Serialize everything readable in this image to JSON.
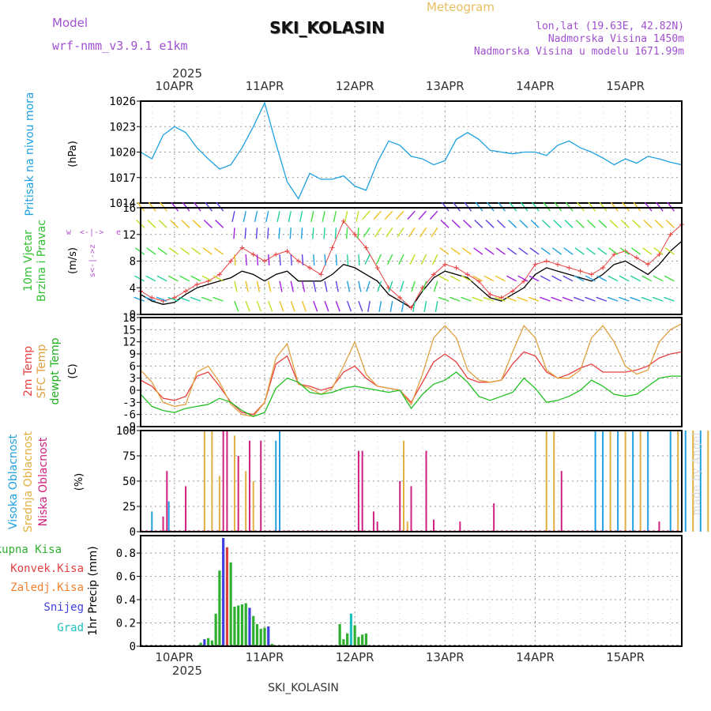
{
  "header": {
    "model_label": "Model",
    "model_name": "wrf-nmm_v3.9.1  e1km",
    "title": "SKI_KOLASIN",
    "product": "Meteogram",
    "lonlat": "lon,lat (19.63E, 42.82N)",
    "elevation": "Nadmorska Visina 1450m",
    "model_elevation": "Nadmorska Visina u modelu 1671.99m"
  },
  "footer": {
    "station": "SKI_KOLASIN",
    "credit": "made by Angel"
  },
  "x_axis": {
    "year": "2025",
    "day_labels": [
      "10APR",
      "11APR",
      "12APR",
      "13APR",
      "14APR",
      "15APR"
    ],
    "start": "2025-04-09T15:00",
    "end": "2025-04-15T15:00"
  },
  "colors": {
    "pressure": "#1ea0e0",
    "wind_speed": "#000000",
    "wind_gust": "#e84040",
    "t2m": "#e84040",
    "sfc": "#e0a040",
    "dewpt": "#20c020",
    "cloud_high": "#20a0e0",
    "cloud_mid": "#e0b040",
    "cloud_low": "#d02080",
    "precip_total": "#30b030",
    "precip_conv": "#e04040",
    "precip_frz": "#f08030",
    "precip_snow": "#4040e0",
    "precip_grad": "#20c0c0",
    "grid": "#999999"
  },
  "chart_data": [
    {
      "type": "line",
      "title": "",
      "ylabel": "Pritisak na nivou mora",
      "unit": "(hPa)",
      "ylim": [
        1014,
        1026
      ],
      "yticks": [
        1014,
        1017,
        1020,
        1023,
        1026
      ],
      "grid": true,
      "x_hours": [
        0,
        3,
        6,
        9,
        12,
        15,
        18,
        21,
        24,
        27,
        30,
        33,
        36,
        39,
        42,
        45,
        48,
        51,
        54,
        57,
        60,
        63,
        66,
        69,
        72,
        75,
        78,
        81,
        84,
        87,
        90,
        93,
        96,
        99,
        102,
        105,
        108,
        111,
        114,
        117,
        120,
        123,
        126,
        129,
        132,
        135,
        138,
        141,
        144
      ],
      "series": [
        {
          "key": "pressure",
          "values": [
            1020,
            1019.2,
            1022,
            1023,
            1022.3,
            1020.5,
            1019.2,
            1018,
            1018.5,
            1020.5,
            1023,
            1025.8,
            1021,
            1016.5,
            1014.5,
            1017.5,
            1016.8,
            1016.8,
            1017.2,
            1016,
            1015.5,
            1018.8,
            1021.3,
            1020.8,
            1019.5,
            1019.2,
            1018.5,
            1019,
            1021.5,
            1022.3,
            1021.5,
            1020.2,
            1020,
            1019.8,
            1020,
            1020,
            1019.6,
            1020.8,
            1021.3,
            1020.5,
            1020,
            1019.3,
            1018.5,
            1019.2,
            1018.7,
            1019.5,
            1019.2,
            1018.8,
            1018.5
          ]
        }
      ]
    },
    {
      "type": "line",
      "title": "",
      "ylabel": "10m Vjetar / Brzina i Pravac",
      "unit": "(m/s)",
      "ylim": [
        0,
        16
      ],
      "yticks": [
        0,
        4,
        8,
        12,
        16
      ],
      "grid": true,
      "direction_key": [
        "w",
        "<-|->",
        "e",
        "s",
        "z"
      ],
      "x_hours": [
        0,
        3,
        6,
        9,
        12,
        15,
        18,
        21,
        24,
        27,
        30,
        33,
        36,
        39,
        42,
        45,
        48,
        51,
        54,
        57,
        60,
        63,
        66,
        69,
        72,
        75,
        78,
        81,
        84,
        87,
        90,
        93,
        96,
        99,
        102,
        105,
        108,
        111,
        114,
        117,
        120,
        123,
        126,
        129,
        132,
        135,
        138,
        141,
        144
      ],
      "series": [
        {
          "key": "speed",
          "values": [
            3,
            2,
            1.5,
            1.8,
            3,
            4,
            4.5,
            5,
            5.5,
            6.5,
            6,
            5,
            6,
            6.5,
            5,
            5,
            5,
            6,
            7.5,
            7,
            6,
            5,
            3,
            2,
            1,
            3.5,
            5.5,
            6.5,
            6,
            5.5,
            4,
            2.5,
            2,
            3,
            4,
            6,
            7,
            6.5,
            6,
            5.5,
            5,
            6,
            7.5,
            8,
            7,
            6,
            7.5,
            9.5,
            11
          ]
        },
        {
          "key": "gust",
          "values": [
            3.5,
            2.5,
            2,
            2.5,
            3.5,
            4.5,
            5,
            6,
            8,
            10,
            9,
            8,
            9,
            9.5,
            8,
            7,
            6,
            10,
            14,
            12,
            10,
            7,
            4,
            2.5,
            1,
            4,
            6,
            7.5,
            7,
            6,
            5,
            3,
            2.5,
            3.5,
            5,
            7.5,
            8,
            7.5,
            7,
            6.5,
            6,
            7,
            9,
            9.5,
            8.5,
            7.5,
            9,
            12,
            13.5
          ]
        }
      ]
    },
    {
      "type": "line",
      "title": "",
      "ylabel": "2m Temp / SFC Temp / dewpt Temp",
      "unit": "(C)",
      "ylim": [
        -9,
        18
      ],
      "yticks": [
        -9,
        -6,
        -3,
        0,
        3,
        6,
        9,
        12,
        15,
        18
      ],
      "grid": true,
      "x_hours": [
        0,
        3,
        6,
        9,
        12,
        15,
        18,
        21,
        24,
        27,
        30,
        33,
        36,
        39,
        42,
        45,
        48,
        51,
        54,
        57,
        60,
        63,
        66,
        69,
        72,
        75,
        78,
        81,
        84,
        87,
        90,
        93,
        96,
        99,
        102,
        105,
        108,
        111,
        114,
        117,
        120,
        123,
        126,
        129,
        132,
        135,
        138,
        141,
        144
      ],
      "series": [
        {
          "key": "t2m",
          "values": [
            2.5,
            1,
            -2,
            -2.5,
            -1.5,
            3.5,
            4.5,
            1,
            -3,
            -5.5,
            -6,
            -3,
            6.5,
            8.5,
            1.5,
            1,
            0,
            0.8,
            4.5,
            6,
            3,
            1,
            0.5,
            0,
            -3,
            2,
            7,
            9,
            7,
            3,
            2,
            2,
            2.5,
            6.5,
            9.5,
            8.5,
            4.5,
            3,
            4,
            5.5,
            6.5,
            4.5,
            4.5,
            4.5,
            5,
            6,
            8,
            9,
            9.5
          ]
        },
        {
          "key": "sfc",
          "values": [
            5,
            2,
            -3,
            -4,
            -3.5,
            4.5,
            6,
            2,
            -3.5,
            -6,
            -6.5,
            -3,
            8,
            11.5,
            1.5,
            0.5,
            -1,
            0.5,
            6,
            12,
            4,
            1,
            0.5,
            0,
            -3.5,
            4,
            13,
            16,
            13,
            5,
            2.5,
            2,
            2.5,
            9.5,
            16,
            13,
            5,
            3,
            3,
            5,
            13,
            16,
            12,
            6,
            4,
            5,
            12,
            15,
            16.5
          ]
        },
        {
          "key": "dewpt",
          "values": [
            -1,
            -4,
            -5,
            -5.5,
            -4.5,
            -4,
            -3.5,
            -2,
            -3,
            -5,
            -6.5,
            -5.5,
            0.5,
            3,
            2,
            -0.5,
            -1,
            -0.5,
            0.5,
            1,
            0.5,
            0,
            -0.5,
            0,
            -4.5,
            -1,
            1.5,
            2.5,
            4.5,
            2,
            -1.5,
            -2.5,
            -1.5,
            -0.5,
            3,
            0.5,
            -3,
            -2.5,
            -1.5,
            0,
            2.5,
            1,
            -1,
            -1.5,
            -1,
            1,
            3,
            3.5,
            3.5
          ]
        }
      ]
    },
    {
      "type": "bar",
      "title": "",
      "ylabel": "Visoka Oblacnost / Srednja Oblacnost / Niska Oblacnost",
      "unit": "(%)",
      "ylim": [
        0,
        100
      ],
      "yticks": [
        0,
        25,
        50,
        75,
        100
      ],
      "grid": true,
      "bars": [
        {
          "t": 3,
          "key": "high",
          "v": 20
        },
        {
          "t": 6,
          "key": "low",
          "v": 15
        },
        {
          "t": 7,
          "key": "low",
          "v": 60
        },
        {
          "t": 7.5,
          "key": "high",
          "v": 30
        },
        {
          "t": 12,
          "key": "low",
          "v": 45
        },
        {
          "t": 17,
          "key": "mid",
          "v": 100
        },
        {
          "t": 19,
          "key": "mid",
          "v": 100
        },
        {
          "t": 21,
          "key": "mid",
          "v": 55
        },
        {
          "t": 22,
          "key": "low",
          "v": 100
        },
        {
          "t": 23,
          "key": "low",
          "v": 100
        },
        {
          "t": 25,
          "key": "mid",
          "v": 95
        },
        {
          "t": 26,
          "key": "low",
          "v": 75
        },
        {
          "t": 28,
          "key": "mid",
          "v": 60
        },
        {
          "t": 29,
          "key": "low",
          "v": 90
        },
        {
          "t": 30,
          "key": "mid",
          "v": 50
        },
        {
          "t": 32,
          "key": "low",
          "v": 90
        },
        {
          "t": 36,
          "key": "high",
          "v": 90
        },
        {
          "t": 37,
          "key": "high",
          "v": 100
        },
        {
          "t": 58,
          "key": "low",
          "v": 80
        },
        {
          "t": 59,
          "key": "low",
          "v": 80
        },
        {
          "t": 62,
          "key": "low",
          "v": 20
        },
        {
          "t": 63,
          "key": "low",
          "v": 10
        },
        {
          "t": 69,
          "key": "low",
          "v": 50
        },
        {
          "t": 70,
          "key": "mid",
          "v": 90
        },
        {
          "t": 71,
          "key": "mid",
          "v": 10
        },
        {
          "t": 72,
          "key": "low",
          "v": 45
        },
        {
          "t": 76,
          "key": "low",
          "v": 80
        },
        {
          "t": 78,
          "key": "low",
          "v": 12
        },
        {
          "t": 85,
          "key": "low",
          "v": 10
        },
        {
          "t": 94,
          "key": "low",
          "v": 28
        },
        {
          "t": 108,
          "key": "mid",
          "v": 100
        },
        {
          "t": 110,
          "key": "mid",
          "v": 100
        },
        {
          "t": 112,
          "key": "low",
          "v": 60
        },
        {
          "t": 121,
          "key": "high",
          "v": 100
        },
        {
          "t": 123,
          "key": "high",
          "v": 100
        },
        {
          "t": 125,
          "key": "mid",
          "v": 100
        },
        {
          "t": 127,
          "key": "high",
          "v": 100
        },
        {
          "t": 129,
          "key": "mid",
          "v": 100
        },
        {
          "t": 131,
          "key": "high",
          "v": 100
        },
        {
          "t": 133,
          "key": "mid",
          "v": 100
        },
        {
          "t": 135,
          "key": "high",
          "v": 100
        },
        {
          "t": 138,
          "key": "low",
          "v": 10
        },
        {
          "t": 141,
          "key": "high",
          "v": 100
        },
        {
          "t": 143,
          "key": "mid",
          "v": 100
        },
        {
          "t": 145,
          "key": "high",
          "v": 100
        },
        {
          "t": 147,
          "key": "mid",
          "v": 100
        },
        {
          "t": 149,
          "key": "high",
          "v": 100
        },
        {
          "t": 151,
          "key": "mid",
          "v": 100
        },
        {
          "t": 153,
          "key": "high",
          "v": 100
        },
        {
          "t": 155,
          "key": "high",
          "v": 100
        }
      ]
    },
    {
      "type": "bar",
      "title": "",
      "ylabel": "1hr Precip",
      "unit": "(mm)",
      "legend": [
        "Ukupna Kisa",
        "Konvek.Kisa",
        "Zaledj.Kisa",
        "Snijeg",
        "Grad"
      ],
      "ylim": [
        0,
        0.95
      ],
      "yticks": [
        0,
        0.2,
        0.4,
        0.6,
        0.8
      ],
      "grid": true,
      "bars": [
        {
          "t": 16,
          "key": "total",
          "v": 0.03
        },
        {
          "t": 17,
          "key": "snow",
          "v": 0.06
        },
        {
          "t": 18,
          "key": "total",
          "v": 0.07
        },
        {
          "t": 19,
          "key": "total",
          "v": 0.05
        },
        {
          "t": 20,
          "key": "total",
          "v": 0.28
        },
        {
          "t": 21,
          "key": "total",
          "v": 0.65
        },
        {
          "t": 22,
          "key": "snow",
          "v": 0.93
        },
        {
          "t": 23,
          "key": "conv",
          "v": 0.85
        },
        {
          "t": 24,
          "key": "total",
          "v": 0.72
        },
        {
          "t": 25,
          "key": "total",
          "v": 0.34
        },
        {
          "t": 26,
          "key": "total",
          "v": 0.35
        },
        {
          "t": 27,
          "key": "total",
          "v": 0.36
        },
        {
          "t": 28,
          "key": "total",
          "v": 0.37
        },
        {
          "t": 29,
          "key": "snow",
          "v": 0.33
        },
        {
          "t": 30,
          "key": "total",
          "v": 0.26
        },
        {
          "t": 31,
          "key": "total",
          "v": 0.19
        },
        {
          "t": 32,
          "key": "total",
          "v": 0.15
        },
        {
          "t": 33,
          "key": "total",
          "v": 0.16
        },
        {
          "t": 34,
          "key": "snow",
          "v": 0.17
        },
        {
          "t": 35,
          "key": "total",
          "v": 0.02
        },
        {
          "t": 53,
          "key": "total",
          "v": 0.19
        },
        {
          "t": 54,
          "key": "total",
          "v": 0.06
        },
        {
          "t": 55,
          "key": "total",
          "v": 0.11
        },
        {
          "t": 56,
          "key": "grad",
          "v": 0.28
        },
        {
          "t": 57,
          "key": "total",
          "v": 0.18
        },
        {
          "t": 58,
          "key": "total",
          "v": 0.08
        },
        {
          "t": 59,
          "key": "total",
          "v": 0.1
        },
        {
          "t": 60,
          "key": "total",
          "v": 0.11
        }
      ]
    }
  ]
}
